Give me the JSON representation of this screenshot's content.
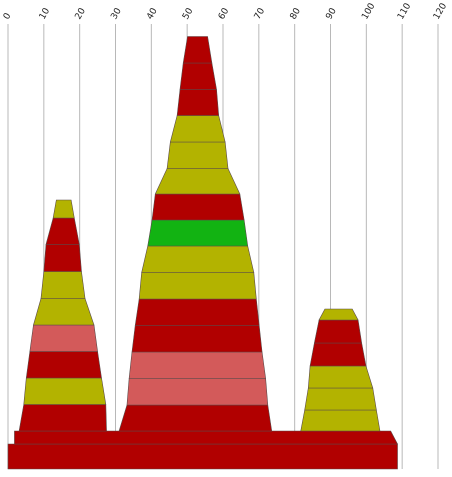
{
  "chart_data": {
    "type": "bar",
    "orientation": "horizontal-stacked-layers",
    "x_ticks": [
      0,
      10,
      20,
      30,
      40,
      50,
      60,
      70,
      80,
      90,
      100,
      110,
      120
    ],
    "xlim": [
      0,
      120
    ],
    "grid": "vertical",
    "legend": "none",
    "colors": {
      "red": "#b10000",
      "olive": "#b3b300",
      "green": "#12b312",
      "pink": "#d35a5a"
    },
    "base_layers": [
      {
        "from": 0.0,
        "to": 108.7,
        "color": "red"
      },
      {
        "from": 1.8,
        "to": 106.8,
        "color": "red"
      }
    ],
    "stacks": [
      {
        "name": "",
        "segments": [
          {
            "from": 3.1,
            "to": 27.5,
            "color": "red"
          },
          {
            "from": 4.4,
            "to": 27.3,
            "color": "olive"
          },
          {
            "from": 5.1,
            "to": 26.1,
            "color": "red"
          },
          {
            "from": 6.1,
            "to": 25.0,
            "color": "pink"
          },
          {
            "from": 7.1,
            "to": 24.0,
            "color": "olive"
          },
          {
            "from": 9.2,
            "to": 21.5,
            "color": "olive"
          },
          {
            "from": 10.0,
            "to": 20.5,
            "color": "red"
          },
          {
            "from": 10.6,
            "to": 19.9,
            "color": "red"
          },
          {
            "from": 12.6,
            "to": 18.5,
            "color": "olive"
          }
        ]
      },
      {
        "name": "",
        "segments": [
          {
            "from": 31.0,
            "to": 73.6,
            "color": "red"
          },
          {
            "from": 33.2,
            "to": 72.5,
            "color": "pink"
          },
          {
            "from": 33.8,
            "to": 71.9,
            "color": "pink"
          },
          {
            "from": 34.6,
            "to": 70.9,
            "color": "red"
          },
          {
            "from": 35.5,
            "to": 70.1,
            "color": "red"
          },
          {
            "from": 36.6,
            "to": 69.3,
            "color": "olive"
          },
          {
            "from": 37.3,
            "to": 68.6,
            "color": "olive"
          },
          {
            "from": 39.0,
            "to": 66.9,
            "color": "green"
          },
          {
            "from": 40.2,
            "to": 65.9,
            "color": "red"
          },
          {
            "from": 41.1,
            "to": 64.7,
            "color": "olive"
          },
          {
            "from": 44.4,
            "to": 61.4,
            "color": "olive"
          },
          {
            "from": 45.3,
            "to": 60.6,
            "color": "olive"
          },
          {
            "from": 47.2,
            "to": 58.8,
            "color": "red"
          },
          {
            "from": 48.0,
            "to": 58.2,
            "color": "red"
          },
          {
            "from": 48.9,
            "to": 56.9,
            "color": "red"
          }
        ]
      },
      {
        "name": "",
        "segments": [
          {
            "from": 81.7,
            "to": 103.8,
            "color": "olive"
          },
          {
            "from": 82.8,
            "to": 102.8,
            "color": "olive"
          },
          {
            "from": 83.8,
            "to": 101.8,
            "color": "olive"
          },
          {
            "from": 84.3,
            "to": 99.9,
            "color": "red"
          },
          {
            "from": 85.5,
            "to": 98.7,
            "color": "red"
          },
          {
            "from": 86.8,
            "to": 97.7,
            "color": "olive"
          }
        ]
      }
    ]
  }
}
